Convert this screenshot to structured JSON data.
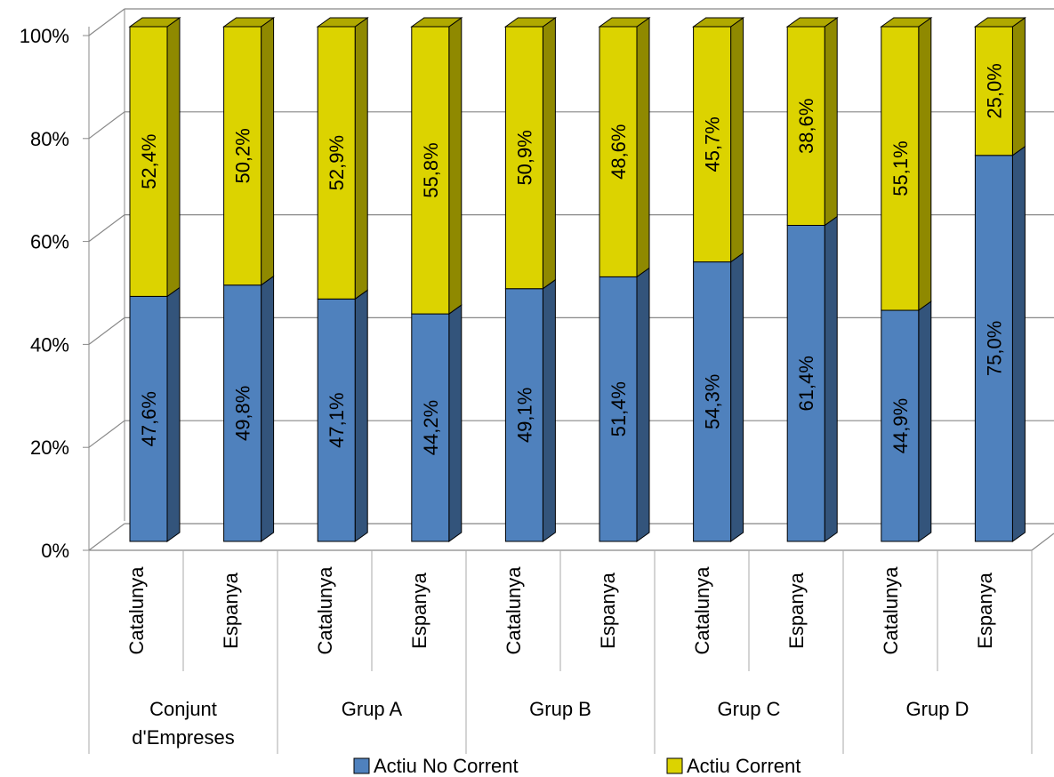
{
  "chart_data": {
    "type": "bar",
    "stacked": "percent",
    "three_d": true,
    "categories": [
      {
        "group": "Conjunt d'Empreses",
        "group_lines": [
          "Conjunt",
          "d'Empreses"
        ],
        "region": "Catalunya"
      },
      {
        "group": "Conjunt d'Empreses",
        "group_lines": [
          "Conjunt",
          "d'Empreses"
        ],
        "region": "Espanya"
      },
      {
        "group": "Grup A",
        "group_lines": [
          "Grup A"
        ],
        "region": "Catalunya"
      },
      {
        "group": "Grup A",
        "group_lines": [
          "Grup A"
        ],
        "region": "Espanya"
      },
      {
        "group": "Grup B",
        "group_lines": [
          "Grup B"
        ],
        "region": "Catalunya"
      },
      {
        "group": "Grup B",
        "group_lines": [
          "Grup B"
        ],
        "region": "Espanya"
      },
      {
        "group": "Grup C",
        "group_lines": [
          "Grup C"
        ],
        "region": "Catalunya"
      },
      {
        "group": "Grup C",
        "group_lines": [
          "Grup C"
        ],
        "region": "Espanya"
      },
      {
        "group": "Grup D",
        "group_lines": [
          "Grup D"
        ],
        "region": "Catalunya"
      },
      {
        "group": "Grup D",
        "group_lines": [
          "Grup D"
        ],
        "region": "Espanya"
      }
    ],
    "series": [
      {
        "name": "Actiu No Corrent",
        "color": "#4f81bd",
        "values": [
          47.6,
          49.8,
          47.1,
          44.2,
          49.1,
          51.4,
          54.3,
          61.4,
          44.9,
          75.0
        ],
        "labels": [
          "47,6%",
          "49,8%",
          "47,1%",
          "44,2%",
          "49,1%",
          "51,4%",
          "54,3%",
          "61,4%",
          "44,9%",
          "75,0%"
        ]
      },
      {
        "name": "Actiu Corrent",
        "color": "#dcd300",
        "values": [
          52.4,
          50.2,
          52.9,
          55.8,
          50.9,
          48.6,
          45.7,
          38.6,
          55.1,
          25.0
        ],
        "labels": [
          "52,4%",
          "50,2%",
          "52,9%",
          "55,8%",
          "50,9%",
          "48,6%",
          "45,7%",
          "38,6%",
          "55,1%",
          "25,0%"
        ]
      }
    ],
    "y_ticks": [
      "0%",
      "20%",
      "40%",
      "60%",
      "80%",
      "100%"
    ],
    "ylim": [
      0,
      100
    ],
    "grid": true,
    "legend": "bottom"
  }
}
